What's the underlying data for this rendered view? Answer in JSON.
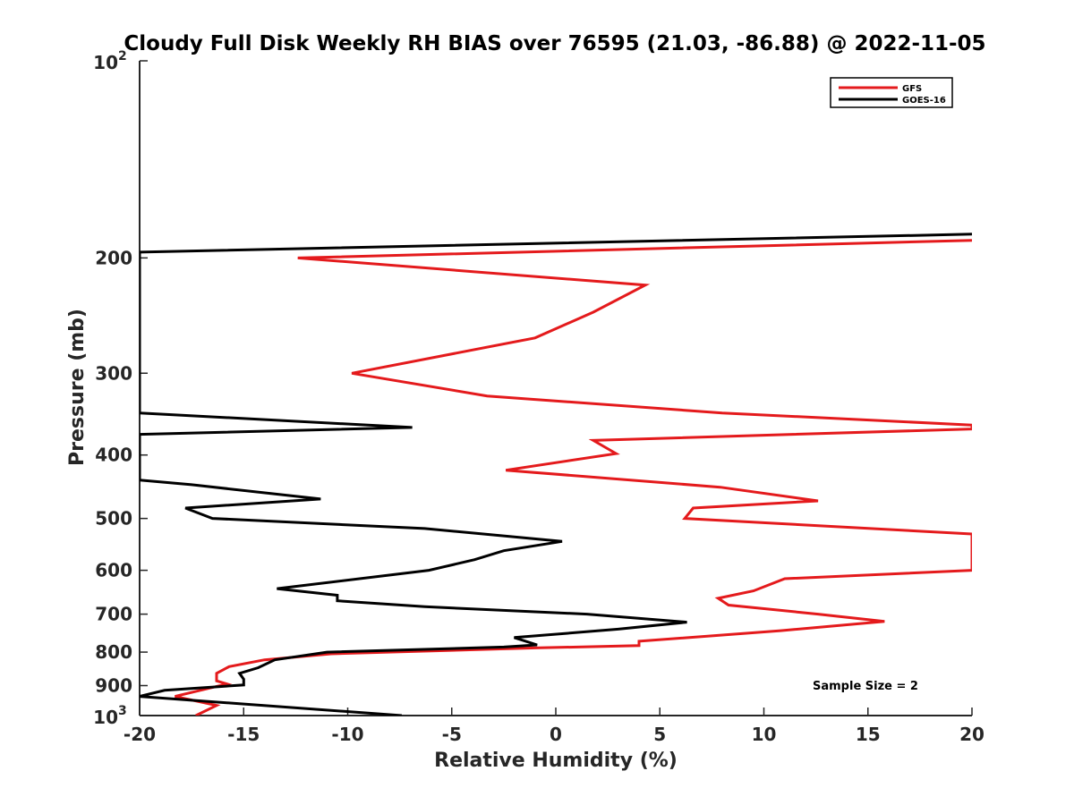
{
  "chart_data": {
    "type": "line",
    "title": "Cloudy Full Disk Weekly RH BIAS over 76595 (21.03, -86.88) @ 2022-11-05",
    "xlabel": "Relative Humidity (%)",
    "ylabel": "Pressure (mb)",
    "xlim": [
      -20,
      20
    ],
    "ylim": [
      100,
      1000
    ],
    "yscale": "log",
    "y_direction": "reversed",
    "xticks": [
      -20,
      -15,
      -10,
      -5,
      0,
      5,
      10,
      15,
      20
    ],
    "xtick_labels": [
      "-20",
      "-15",
      "-10",
      "-5",
      "0",
      "5",
      "10",
      "15",
      "20"
    ],
    "yticks": [
      {
        "value": 100,
        "base": "10",
        "exp": "2"
      },
      {
        "value": 200,
        "label": "200"
      },
      {
        "value": 300,
        "label": "300"
      },
      {
        "value": 400,
        "label": "400"
      },
      {
        "value": 500,
        "label": "500"
      },
      {
        "value": 600,
        "label": "600"
      },
      {
        "value": 700,
        "label": "700"
      },
      {
        "value": 800,
        "label": "800"
      },
      {
        "value": 900,
        "label": "900"
      },
      {
        "value": 1000,
        "base": "10",
        "exp": "3"
      }
    ],
    "legend_position": "top-right",
    "series": [
      {
        "name": "GFS",
        "color": "#e41a1c",
        "points": [
          [
            20,
            188
          ],
          [
            -12.4,
            200
          ],
          [
            4.3,
            220
          ],
          [
            1.8,
            242
          ],
          [
            -1.0,
            265
          ],
          [
            -9.8,
            300
          ],
          [
            -3.3,
            325
          ],
          [
            8.0,
            345
          ],
          [
            20,
            360
          ],
          [
            20,
            365
          ],
          [
            1.8,
            380
          ],
          [
            2.9,
            398
          ],
          [
            -2.4,
            422
          ],
          [
            7.9,
            448
          ],
          [
            12.6,
            470
          ],
          [
            6.6,
            482
          ],
          [
            6.2,
            500
          ],
          [
            20,
            528
          ],
          [
            20,
            600
          ],
          [
            11.0,
            618
          ],
          [
            9.5,
            645
          ],
          [
            7.8,
            662
          ],
          [
            8.3,
            678
          ],
          [
            12.6,
            700
          ],
          [
            15.8,
            718
          ],
          [
            10.8,
            742
          ],
          [
            4.0,
            770
          ],
          [
            4.0,
            782
          ],
          [
            -0.8,
            788
          ],
          [
            -10.8,
            805
          ],
          [
            -14.0,
            822
          ],
          [
            -15.7,
            842
          ],
          [
            -16.3,
            862
          ],
          [
            -16.3,
            885
          ],
          [
            -15.8,
            895
          ],
          [
            -18.3,
            935
          ],
          [
            -16.3,
            965
          ],
          [
            -17.3,
            1000
          ]
        ]
      },
      {
        "name": "GOES-16",
        "color": "#000000",
        "points": [
          [
            20,
            184
          ],
          [
            -20,
            196
          ],
          [
            -20,
            345
          ],
          [
            -6.9,
            363
          ],
          [
            -20,
            372
          ],
          [
            -20,
            437
          ],
          [
            -17.5,
            444
          ],
          [
            -11.3,
            467
          ],
          [
            -17.8,
            482
          ],
          [
            -16.5,
            500
          ],
          [
            -6.3,
            518
          ],
          [
            0.3,
            542
          ],
          [
            -2.5,
            560
          ],
          [
            -3.9,
            578
          ],
          [
            -6.1,
            600
          ],
          [
            -13.4,
            640
          ],
          [
            -10.5,
            655
          ],
          [
            -10.5,
            668
          ],
          [
            -6.3,
            682
          ],
          [
            1.5,
            700
          ],
          [
            6.3,
            720
          ],
          [
            3.0,
            738
          ],
          [
            -2.0,
            760
          ],
          [
            -0.9,
            780
          ],
          [
            -2.5,
            786
          ],
          [
            -11.0,
            800
          ],
          [
            -13.5,
            822
          ],
          [
            -14.3,
            845
          ],
          [
            -15.2,
            862
          ],
          [
            -15.0,
            880
          ],
          [
            -15.0,
            898
          ],
          [
            -18.8,
            915
          ],
          [
            -20,
            935
          ],
          [
            -7.4,
            1000
          ]
        ]
      }
    ],
    "annotation": "Sample Size = 2"
  }
}
